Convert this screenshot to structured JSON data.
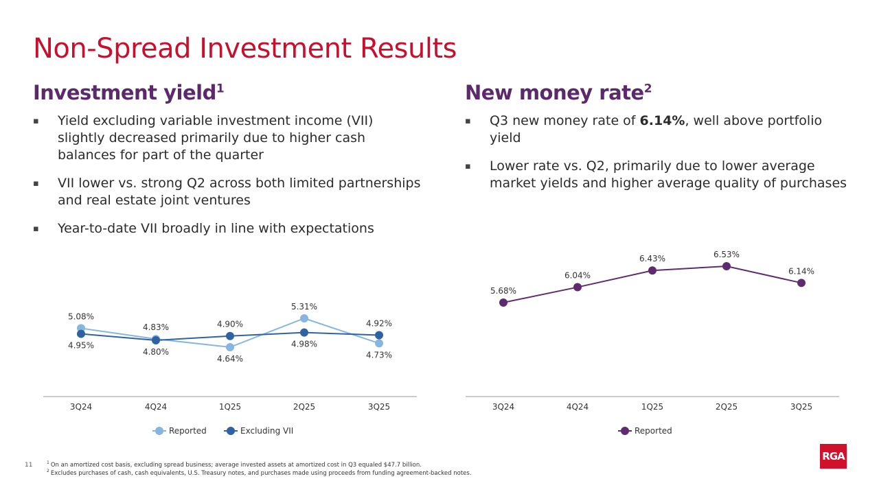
{
  "title": "Non-Spread Investment Results",
  "left": {
    "heading": "Investment yield",
    "heading_sup": "1",
    "bullets": [
      "Yield excluding variable investment income (VII) slightly decreased primarily due to higher cash balances for part of the quarter",
      "VII lower vs. strong Q2 across both limited partnerships and real estate joint ventures",
      "Year-to-date VII broadly in line with expectations"
    ]
  },
  "right": {
    "heading": "New money rate",
    "heading_sup": "2",
    "bullets": [
      [
        "Q3 new money rate of ",
        "6.14%",
        ", well above portfolio yield"
      ],
      [
        "Lower rate vs. Q2, primarily due to lower average market yields and higher average quality of purchases"
      ]
    ]
  },
  "chart_data": [
    {
      "type": "line",
      "categories": [
        "3Q24",
        "4Q24",
        "1Q25",
        "2Q25",
        "3Q25"
      ],
      "series": [
        {
          "name": "Reported",
          "color": "#86b6df",
          "values": [
            5.08,
            4.83,
            4.64,
            5.31,
            4.73
          ],
          "value_labels": [
            "5.08%",
            "4.83%",
            "4.64%",
            "5.31%",
            "4.73%"
          ]
        },
        {
          "name": "Excluding VII",
          "color": "#2f62a0",
          "values": [
            4.95,
            4.8,
            4.9,
            4.98,
            4.92
          ],
          "value_labels": [
            "4.95%",
            "4.80%",
            "4.90%",
            "4.98%",
            "4.92%"
          ]
        }
      ]
    },
    {
      "type": "line",
      "categories": [
        "3Q24",
        "4Q24",
        "1Q25",
        "2Q25",
        "3Q25"
      ],
      "series": [
        {
          "name": "Reported",
          "color": "#5e2a70",
          "values": [
            5.68,
            6.04,
            6.43,
            6.53,
            6.14
          ],
          "value_labels": [
            "5.68%",
            "6.04%",
            "6.43%",
            "6.53%",
            "6.14%"
          ]
        }
      ]
    }
  ],
  "footnotes": [
    {
      "mark": "1",
      "text": "On an amortized cost basis, excluding spread business; average invested assets at amortized cost in Q3 equaled $47.7 billion."
    },
    {
      "mark": "2",
      "text": "Excludes purchases of cash, cash equivalents, U.S. Treasury notes, and purchases made using proceeds from funding agreement-backed notes."
    }
  ],
  "page_number": "11",
  "logo": "RGA"
}
